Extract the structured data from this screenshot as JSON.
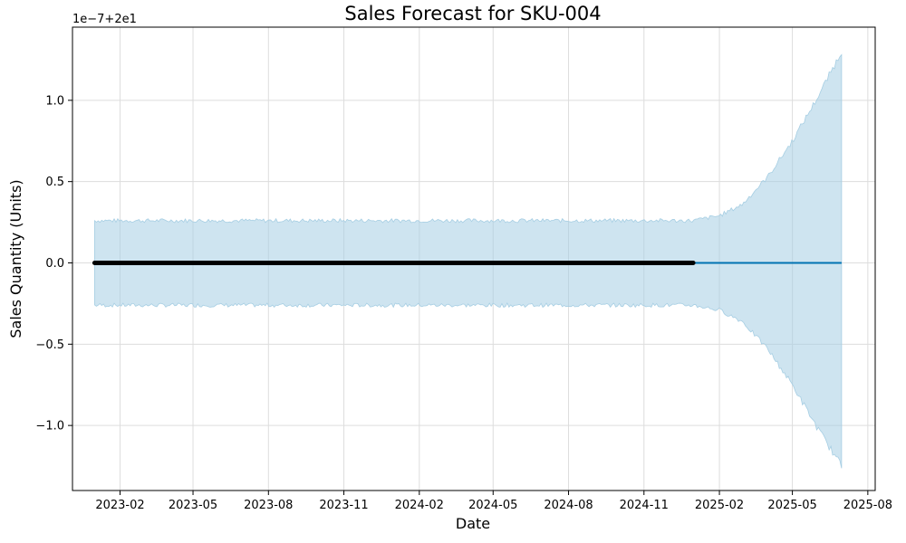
{
  "chart_data": {
    "type": "line",
    "title": "Sales Forecast for SKU-004",
    "xlabel": "Date",
    "ylabel": "Sales Quantity (Units)",
    "y_offset_label": "1e−7+2e1",
    "x_range": [
      "2022-12-05",
      "2025-08-10"
    ],
    "ylim": [
      -1.4,
      1.45
    ],
    "x_ticks": [
      {
        "date": "2023-02-01",
        "label": "2023-02"
      },
      {
        "date": "2023-05-01",
        "label": "2023-05"
      },
      {
        "date": "2023-08-01",
        "label": "2023-08"
      },
      {
        "date": "2023-11-01",
        "label": "2023-11"
      },
      {
        "date": "2024-02-01",
        "label": "2024-02"
      },
      {
        "date": "2024-05-01",
        "label": "2024-05"
      },
      {
        "date": "2024-08-01",
        "label": "2024-08"
      },
      {
        "date": "2024-11-01",
        "label": "2024-11"
      },
      {
        "date": "2025-02-01",
        "label": "2025-02"
      },
      {
        "date": "2025-05-01",
        "label": "2025-05"
      },
      {
        "date": "2025-08-01",
        "label": "2025-08"
      }
    ],
    "y_ticks": [
      {
        "value": 1.0,
        "label": "1.0"
      },
      {
        "value": 0.5,
        "label": "0.5"
      },
      {
        "value": 0.0,
        "label": "0.0"
      },
      {
        "value": -0.5,
        "label": "−0.5"
      },
      {
        "value": -1.0,
        "label": "−1.0"
      }
    ],
    "grid": true,
    "observed": {
      "start": "2023-01-01",
      "end": "2024-12-31",
      "value": 0.0,
      "color": "#000000"
    },
    "forecast": {
      "start": "2023-01-01",
      "end": "2025-06-30",
      "value": 0.0,
      "color": "#0072B2"
    },
    "uncertainty_band": {
      "color": "#a6cee3",
      "points": [
        {
          "date": "2023-01-01",
          "upper": 0.26,
          "lower": -0.26
        },
        {
          "date": "2024-12-31",
          "upper": 0.26,
          "lower": -0.26
        },
        {
          "date": "2025-02-01",
          "upper": 0.29,
          "lower": -0.29
        },
        {
          "date": "2025-03-01",
          "upper": 0.36,
          "lower": -0.36
        },
        {
          "date": "2025-04-01",
          "upper": 0.53,
          "lower": -0.53
        },
        {
          "date": "2025-05-01",
          "upper": 0.75,
          "lower": -0.75
        },
        {
          "date": "2025-06-01",
          "upper": 1.02,
          "lower": -1.02
        },
        {
          "date": "2025-06-30",
          "upper": 1.3,
          "lower": -1.25
        }
      ]
    }
  }
}
